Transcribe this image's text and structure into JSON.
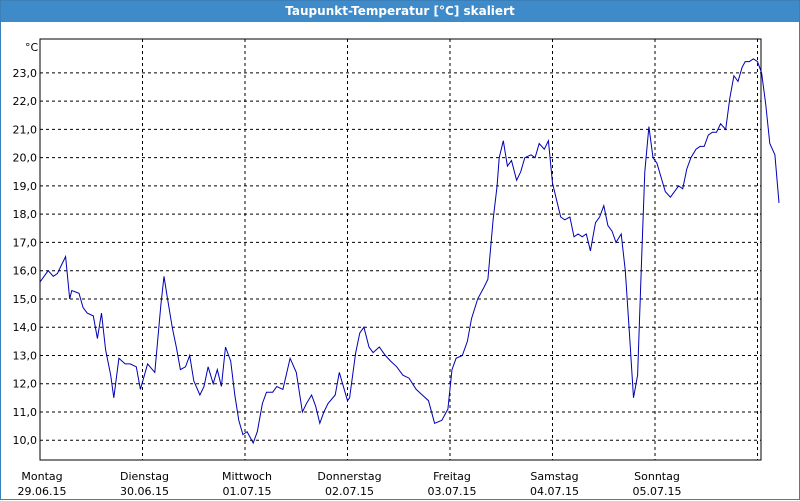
{
  "window": {
    "title": "Taupunkt-Temperatur [°C] skaliert"
  },
  "colors": {
    "title_bar": "#3f8ac9",
    "line": "#0000b4",
    "grid": "#000000",
    "axis_frame": "#000000"
  },
  "chart_data": {
    "type": "line",
    "title": "Taupunkt-Temperatur [°C] skaliert",
    "ylabel": "°C",
    "xlabel": "",
    "ylim": [
      9.3,
      24.2
    ],
    "xlim": [
      0,
      7
    ],
    "grid": true,
    "y_ticks": [
      "10,0",
      "11,0",
      "12,0",
      "13,0",
      "14,0",
      "15,0",
      "16,0",
      "17,0",
      "18,0",
      "19,0",
      "20,0",
      "21,0",
      "22,0",
      "23,0"
    ],
    "y_tick_values": [
      10,
      11,
      12,
      13,
      14,
      15,
      16,
      17,
      18,
      19,
      20,
      21,
      22,
      23
    ],
    "x_ticks": [
      {
        "day": "Montag",
        "date": "29.06.15"
      },
      {
        "day": "Dienstag",
        "date": "30.06.15"
      },
      {
        "day": "Mittwoch",
        "date": "01.07.15"
      },
      {
        "day": "Donnerstag",
        "date": "02.07.15"
      },
      {
        "day": "Freitag",
        "date": "03.07.15"
      },
      {
        "day": "Samstag",
        "date": "04.07.15"
      },
      {
        "day": "Sonntag",
        "date": "05.07.15"
      }
    ],
    "series": [
      {
        "points": [
          [
            0.0,
            15.6
          ],
          [
            0.04,
            15.8
          ],
          [
            0.08,
            16.0
          ],
          [
            0.13,
            15.8
          ],
          [
            0.17,
            15.9
          ],
          [
            0.21,
            16.2
          ],
          [
            0.25,
            16.5
          ],
          [
            0.29,
            15.0
          ],
          [
            0.31,
            15.3
          ],
          [
            0.38,
            15.2
          ],
          [
            0.42,
            14.7
          ],
          [
            0.46,
            14.5
          ],
          [
            0.52,
            14.4
          ],
          [
            0.56,
            13.6
          ],
          [
            0.6,
            14.5
          ],
          [
            0.64,
            13.2
          ],
          [
            0.69,
            12.3
          ],
          [
            0.72,
            11.5
          ],
          [
            0.77,
            12.9
          ],
          [
            0.83,
            12.7
          ],
          [
            0.88,
            12.7
          ],
          [
            0.94,
            12.6
          ],
          [
            0.98,
            11.8
          ],
          [
            1.05,
            12.7
          ],
          [
            1.12,
            12.4
          ],
          [
            1.18,
            14.8
          ],
          [
            1.21,
            15.8
          ],
          [
            1.24,
            15.1
          ],
          [
            1.29,
            14.0
          ],
          [
            1.33,
            13.3
          ],
          [
            1.37,
            12.5
          ],
          [
            1.42,
            12.6
          ],
          [
            1.46,
            13.0
          ],
          [
            1.5,
            12.1
          ],
          [
            1.56,
            11.6
          ],
          [
            1.6,
            11.9
          ],
          [
            1.64,
            12.6
          ],
          [
            1.69,
            12.0
          ],
          [
            1.73,
            12.5
          ],
          [
            1.77,
            11.9
          ],
          [
            1.81,
            13.3
          ],
          [
            1.86,
            12.8
          ],
          [
            1.9,
            11.6
          ],
          [
            1.94,
            10.7
          ],
          [
            1.98,
            10.2
          ],
          [
            2.02,
            10.3
          ],
          [
            2.08,
            9.9
          ],
          [
            2.12,
            10.3
          ],
          [
            2.17,
            11.3
          ],
          [
            2.21,
            11.7
          ],
          [
            2.27,
            11.7
          ],
          [
            2.31,
            11.9
          ],
          [
            2.37,
            11.8
          ],
          [
            2.44,
            12.9
          ],
          [
            2.5,
            12.4
          ],
          [
            2.56,
            11.0
          ],
          [
            2.6,
            11.3
          ],
          [
            2.65,
            11.6
          ],
          [
            2.69,
            11.2
          ],
          [
            2.73,
            10.6
          ],
          [
            2.77,
            11.0
          ],
          [
            2.81,
            11.3
          ],
          [
            2.88,
            11.6
          ],
          [
            2.92,
            12.4
          ],
          [
            2.96,
            11.9
          ],
          [
            3.0,
            11.4
          ],
          [
            3.02,
            11.5
          ],
          [
            3.08,
            13.1
          ],
          [
            3.12,
            13.8
          ],
          [
            3.16,
            14.0
          ],
          [
            3.21,
            13.3
          ],
          [
            3.25,
            13.1
          ],
          [
            3.31,
            13.3
          ],
          [
            3.37,
            13.0
          ],
          [
            3.42,
            12.8
          ],
          [
            3.48,
            12.6
          ],
          [
            3.54,
            12.3
          ],
          [
            3.6,
            12.2
          ],
          [
            3.67,
            11.8
          ],
          [
            3.73,
            11.6
          ],
          [
            3.79,
            11.4
          ],
          [
            3.85,
            10.6
          ],
          [
            3.92,
            10.7
          ],
          [
            3.98,
            11.1
          ],
          [
            4.02,
            12.5
          ],
          [
            4.06,
            12.9
          ],
          [
            4.12,
            13.0
          ],
          [
            4.17,
            13.5
          ],
          [
            4.21,
            14.3
          ],
          [
            4.27,
            15.0
          ],
          [
            4.33,
            15.4
          ],
          [
            4.37,
            15.7
          ],
          [
            4.42,
            17.8
          ],
          [
            4.46,
            19.0
          ],
          [
            4.48,
            20.0
          ],
          [
            4.52,
            20.6
          ],
          [
            4.56,
            19.7
          ],
          [
            4.6,
            19.9
          ],
          [
            4.65,
            19.2
          ],
          [
            4.69,
            19.5
          ],
          [
            4.73,
            20.0
          ],
          [
            4.79,
            20.1
          ],
          [
            4.83,
            20.0
          ],
          [
            4.87,
            20.5
          ],
          [
            4.92,
            20.3
          ],
          [
            4.96,
            20.6
          ],
          [
            5.0,
            19.1
          ],
          [
            5.04,
            18.5
          ],
          [
            5.08,
            17.9
          ],
          [
            5.12,
            17.8
          ],
          [
            5.17,
            17.9
          ],
          [
            5.21,
            17.2
          ],
          [
            5.25,
            17.3
          ],
          [
            5.29,
            17.2
          ],
          [
            5.33,
            17.3
          ],
          [
            5.37,
            16.7
          ],
          [
            5.42,
            17.7
          ],
          [
            5.46,
            17.9
          ],
          [
            5.5,
            18.3
          ],
          [
            5.54,
            17.6
          ],
          [
            5.58,
            17.4
          ],
          [
            5.62,
            17.0
          ],
          [
            5.67,
            17.3
          ],
          [
            5.71,
            16.0
          ],
          [
            5.75,
            13.8
          ],
          [
            5.79,
            11.5
          ],
          [
            5.83,
            12.3
          ],
          [
            5.87,
            16.5
          ],
          [
            5.9,
            19.5
          ],
          [
            5.94,
            21.1
          ],
          [
            5.98,
            20.0
          ],
          [
            6.02,
            19.8
          ],
          [
            6.06,
            19.3
          ],
          [
            6.1,
            18.8
          ],
          [
            6.15,
            18.6
          ],
          [
            6.19,
            18.8
          ],
          [
            6.23,
            19.0
          ],
          [
            6.27,
            18.9
          ],
          [
            6.31,
            19.6
          ],
          [
            6.35,
            20.0
          ],
          [
            6.4,
            20.3
          ],
          [
            6.44,
            20.4
          ],
          [
            6.48,
            20.4
          ],
          [
            6.52,
            20.8
          ],
          [
            6.56,
            20.9
          ],
          [
            6.6,
            20.9
          ],
          [
            6.64,
            21.2
          ],
          [
            6.69,
            21.0
          ],
          [
            6.73,
            22.1
          ],
          [
            6.77,
            22.9
          ],
          [
            6.81,
            22.7
          ],
          [
            6.85,
            23.2
          ],
          [
            6.88,
            23.4
          ],
          [
            6.92,
            23.4
          ],
          [
            6.96,
            23.5
          ],
          [
            7.0,
            23.4
          ],
          [
            7.04,
            23.0
          ],
          [
            7.08,
            21.9
          ],
          [
            7.12,
            20.5
          ],
          [
            7.17,
            20.1
          ],
          [
            7.21,
            18.4
          ]
        ]
      }
    ]
  }
}
